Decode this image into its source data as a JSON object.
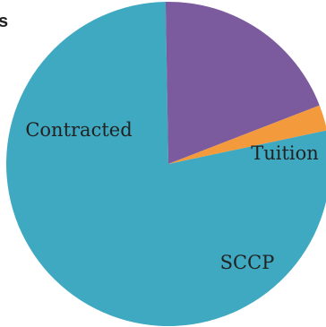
{
  "header": {
    "partial_title": "s"
  },
  "chart_data": {
    "type": "pie",
    "slices": [
      {
        "label": "Contracted",
        "value": 76.5,
        "color": "#3fa9c2"
      },
      {
        "label": "Tuition",
        "value": 19.0,
        "color": "#7b5a9e"
      },
      {
        "label": "SCCP",
        "value": 2.5,
        "color": "#f39a3c"
      }
    ],
    "legend": "none",
    "labels_on_slices": true
  }
}
